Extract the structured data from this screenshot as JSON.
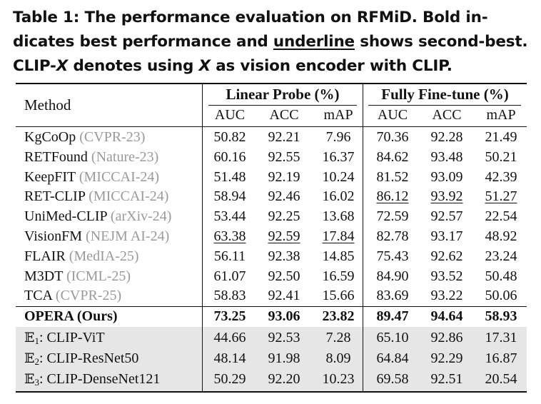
{
  "caption": {
    "part1": "Table 1: The performance evaluation on RFMiD. Bold in-",
    "part2a": "dicates best performance and ",
    "part2b": "underline",
    "part2c": " shows second-best.",
    "part3a": "CLIP-",
    "part3b": "X",
    "part3c": " denotes using ",
    "part3d": "X",
    "part3e": " as vision encoder with CLIP."
  },
  "header": {
    "method": "Method",
    "group1": "Linear Probe (%)",
    "group2": "Fully Fine-tune (%)",
    "cols": [
      "AUC",
      "ACC",
      "mAP",
      "AUC",
      "ACC",
      "mAP"
    ]
  },
  "rows": [
    {
      "name": "KgCoOp",
      "venue": "(CVPR-23)",
      "values": [
        "50.82",
        "92.21",
        "7.96",
        "70.36",
        "92.28",
        "21.49"
      ]
    },
    {
      "name": "RETFound",
      "venue": "(Nature-23)",
      "values": [
        "60.16",
        "92.55",
        "16.37",
        "84.62",
        "93.48",
        "50.21"
      ]
    },
    {
      "name": "KeepFIT",
      "venue": "(MICCAI-24)",
      "values": [
        "51.48",
        "92.19",
        "10.24",
        "81.52",
        "93.09",
        "42.39"
      ]
    },
    {
      "name": "RET-CLIP",
      "venue": "(MICCAI-24)",
      "values": [
        "58.94",
        "92.46",
        "16.02",
        "86.12",
        "93.92",
        "51.27"
      ]
    },
    {
      "name": "UniMed-CLIP",
      "venue": "(arXiv-24)",
      "values": [
        "53.44",
        "92.25",
        "13.68",
        "72.59",
        "92.57",
        "22.54"
      ]
    },
    {
      "name": "VisionFM",
      "venue": "(NEJM AI-24)",
      "values": [
        "63.38",
        "92.59",
        "17.84",
        "82.78",
        "93.17",
        "48.92"
      ]
    },
    {
      "name": "FLAIR",
      "venue": "(MedIA-25)",
      "values": [
        "56.11",
        "92.38",
        "14.85",
        "75.43",
        "92.62",
        "23.24"
      ]
    },
    {
      "name": "M3DT",
      "venue": "(ICML-25)",
      "values": [
        "61.07",
        "92.50",
        "16.59",
        "84.90",
        "93.52",
        "50.48"
      ]
    },
    {
      "name": "TCA",
      "venue": "(CVPR-25)",
      "values": [
        "58.83",
        "92.41",
        "15.66",
        "83.69",
        "93.22",
        "50.06"
      ]
    }
  ],
  "ours": {
    "name": "OPERA (Ours)",
    "values": [
      "73.25",
      "93.06",
      "23.82",
      "89.47",
      "94.64",
      "58.93"
    ]
  },
  "ablations": [
    {
      "symbol": "𝔼",
      "sub": "1",
      "name": ": CLIP-ViT",
      "values": [
        "44.66",
        "92.53",
        "7.28",
        "65.10",
        "92.86",
        "17.31"
      ]
    },
    {
      "symbol": "𝔼",
      "sub": "2",
      "name": ": CLIP-ResNet50",
      "values": [
        "48.14",
        "91.98",
        "8.09",
        "64.84",
        "92.29",
        "16.87"
      ]
    },
    {
      "symbol": "𝔼",
      "sub": "3",
      "name": ": CLIP-DenseNet121",
      "values": [
        "50.29",
        "92.20",
        "10.23",
        "69.58",
        "92.51",
        "20.54"
      ]
    }
  ]
}
